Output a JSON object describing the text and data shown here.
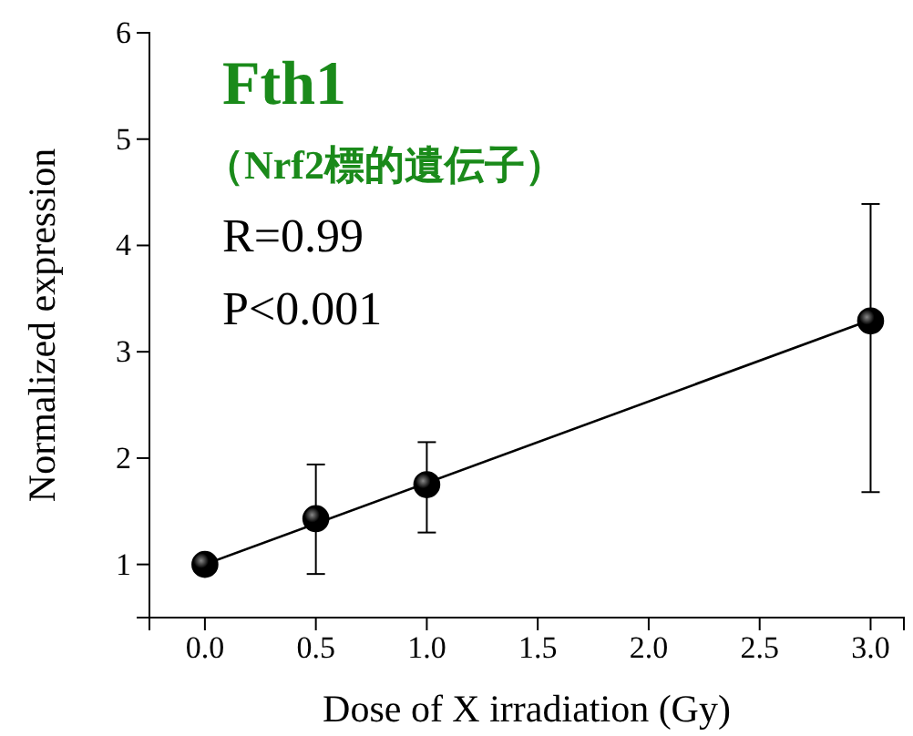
{
  "chart_data": {
    "type": "scatter",
    "title": "Fth1",
    "subtitle": "（Nrf2標的遺伝子）",
    "annotations": [
      "R=0.99",
      "P<0.001"
    ],
    "xlabel": "Dose of X irradiation (Gy)",
    "ylabel": "Normalized expression",
    "xlim": [
      -0.25,
      3.15
    ],
    "ylim": [
      0.5,
      6
    ],
    "xticks": [
      {
        "value": 0,
        "label": "0.0"
      },
      {
        "value": 0.5,
        "label": "0.5"
      },
      {
        "value": 1,
        "label": "1.0"
      },
      {
        "value": 1.5,
        "label": "1.5"
      },
      {
        "value": 2,
        "label": "2.0"
      },
      {
        "value": 2.5,
        "label": "2.5"
      },
      {
        "value": 3,
        "label": "3.0"
      }
    ],
    "yticks": [
      1,
      2,
      3,
      4,
      5,
      6
    ],
    "grid": false,
    "series": [
      {
        "color": "#000000",
        "marker": "circle",
        "x": [
          0,
          0.5,
          1,
          3
        ],
        "values": [
          1.0,
          1.43,
          1.75,
          3.29
        ],
        "errors": [
          null,
          [
            0.91,
            1.94
          ],
          [
            1.3,
            2.15
          ],
          [
            1.68,
            4.39
          ]
        ]
      },
      {
        "type": "line",
        "color": "#000000",
        "line_style": "solid",
        "marker": "none",
        "x": [
          0,
          3
        ],
        "values": [
          1.0,
          3.3
        ]
      }
    ]
  }
}
